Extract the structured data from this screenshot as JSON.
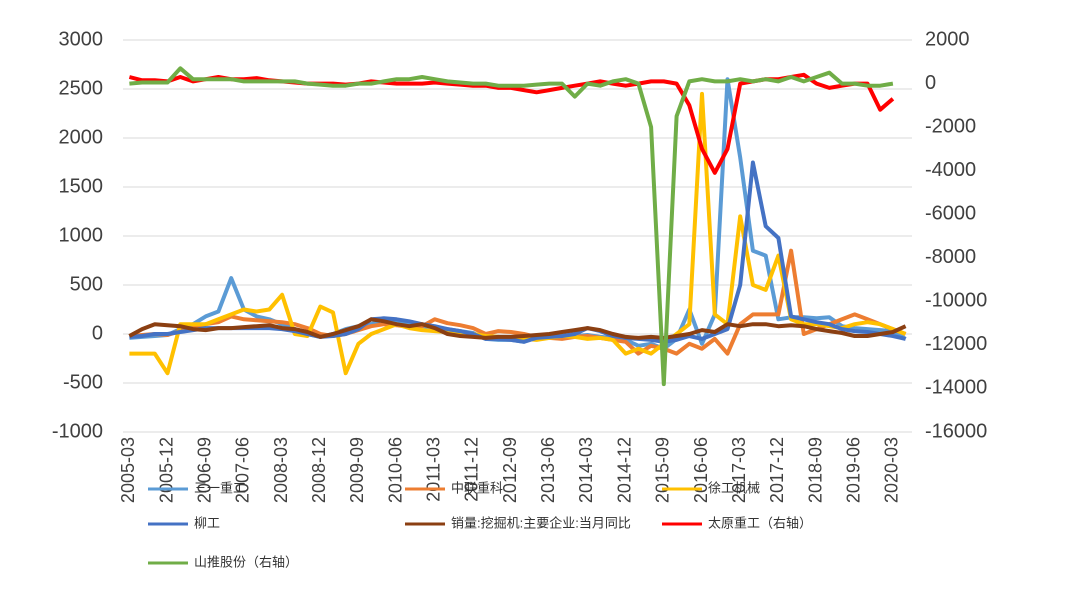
{
  "chart_data": {
    "type": "line",
    "categories": [
      "2005-03",
      null,
      null,
      "2005-12",
      null,
      null,
      "2006-09",
      null,
      null,
      "2007-06",
      null,
      null,
      "2008-03",
      null,
      null,
      "2008-12",
      null,
      null,
      "2009-09",
      null,
      null,
      "2010-06",
      null,
      null,
      "2011-03",
      null,
      null,
      "2011-12",
      null,
      null,
      "2012-09",
      null,
      null,
      "2013-06",
      null,
      null,
      "2014-03",
      null,
      null,
      "2014-12",
      null,
      null,
      "2015-09",
      null,
      null,
      "2016-06",
      null,
      null,
      "2017-03",
      null,
      null,
      "2017-12",
      null,
      null,
      "2018-09",
      null,
      null,
      "2019-06",
      null,
      null,
      "2020-03",
      null
    ],
    "ylim": [
      -1000,
      3000
    ],
    "yticks": [
      -1000,
      -500,
      0,
      500,
      1000,
      1500,
      2000,
      2500,
      3000
    ],
    "y2lim": [
      -16000,
      2000
    ],
    "y2ticks": [
      -16000,
      -14000,
      -12000,
      -10000,
      -8000,
      -6000,
      -4000,
      -2000,
      0,
      2000
    ],
    "grid": true,
    "series": [
      {
        "name": "三一重工",
        "color": "#5b9bd5",
        "values": [
          -40,
          -30,
          -20,
          -10,
          50,
          100,
          180,
          230,
          570,
          250,
          180,
          150,
          100,
          50,
          0,
          -30,
          0,
          50,
          80,
          100,
          150,
          130,
          100,
          80,
          70,
          50,
          30,
          10,
          -50,
          -60,
          -60,
          -80,
          -30,
          -40,
          -30,
          -20,
          -10,
          -30,
          -40,
          -60,
          -120,
          -100,
          -150,
          -50,
          250,
          -100,
          200,
          2600,
          1800,
          850,
          800,
          150,
          170,
          170,
          160,
          170,
          80,
          60,
          50,
          40,
          30,
          -50
        ]
      },
      {
        "name": "中联重科",
        "color": "#ed7d31",
        "values": [
          -20,
          -10,
          0,
          -10,
          30,
          60,
          100,
          120,
          180,
          150,
          140,
          130,
          120,
          100,
          60,
          0,
          -20,
          0,
          40,
          80,
          100,
          90,
          70,
          80,
          150,
          110,
          90,
          60,
          0,
          30,
          20,
          0,
          -30,
          -40,
          -50,
          -30,
          -20,
          -40,
          -60,
          -80,
          -200,
          -120,
          -150,
          -200,
          -100,
          -150,
          -50,
          -200,
          100,
          200,
          200,
          200,
          850,
          0,
          50,
          100,
          150,
          200,
          150,
          100,
          50,
          0
        ]
      },
      {
        "name": "徐工机械",
        "color": "#ffc000",
        "values": [
          -200,
          -200,
          -200,
          -400,
          100,
          100,
          100,
          150,
          200,
          250,
          230,
          250,
          400,
          0,
          -20,
          280,
          220,
          -400,
          -100,
          0,
          50,
          100,
          60,
          40,
          30,
          20,
          10,
          0,
          -20,
          -30,
          -40,
          -50,
          -60,
          -40,
          -20,
          -30,
          -50,
          -40,
          -60,
          -200,
          -150,
          -200,
          -100,
          0,
          100,
          2450,
          200,
          100,
          1200,
          500,
          450,
          800,
          150,
          100,
          100,
          80,
          60,
          100,
          120,
          100,
          50,
          0
        ]
      },
      {
        "name": "柳工",
        "color": "#4472c4",
        "values": [
          -30,
          -20,
          0,
          0,
          20,
          40,
          60,
          60,
          60,
          60,
          60,
          60,
          50,
          30,
          0,
          -30,
          -20,
          0,
          50,
          150,
          160,
          150,
          130,
          100,
          80,
          50,
          30,
          0,
          -50,
          -50,
          -60,
          -80,
          -40,
          -30,
          -20,
          0,
          60,
          30,
          -20,
          -40,
          -50,
          -60,
          -80,
          -60,
          -20,
          -50,
          0,
          50,
          500,
          1750,
          1100,
          980,
          180,
          150,
          120,
          100,
          50,
          30,
          20,
          0,
          -20,
          -50
        ]
      },
      {
        "name": "销量:挖掘机:主要企业:当月同比",
        "color": "#8b3f12",
        "values": [
          -20,
          50,
          100,
          90,
          80,
          50,
          40,
          60,
          60,
          70,
          80,
          90,
          60,
          50,
          20,
          -30,
          0,
          40,
          80,
          150,
          130,
          100,
          80,
          100,
          60,
          0,
          -20,
          -30,
          -40,
          -30,
          -30,
          -20,
          -10,
          0,
          20,
          40,
          60,
          40,
          0,
          -30,
          -40,
          -30,
          -40,
          -20,
          0,
          40,
          20,
          100,
          80,
          100,
          100,
          80,
          90,
          80,
          50,
          30,
          10,
          -20,
          -20,
          0,
          20,
          80
        ]
      },
      {
        "name": "太原重工（右轴）",
        "color": "#ff0000",
        "axis": "y2",
        "values": [
          300,
          150,
          150,
          100,
          300,
          100,
          200,
          300,
          200,
          200,
          250,
          150,
          100,
          50,
          0,
          0,
          0,
          -50,
          0,
          100,
          50,
          0,
          0,
          0,
          50,
          0,
          -50,
          -100,
          -100,
          -200,
          -200,
          -300,
          -400,
          -300,
          -200,
          -100,
          0,
          100,
          0,
          -100,
          0,
          100,
          100,
          0,
          -1000,
          -3000,
          -4100,
          -3000,
          0,
          100,
          200,
          200,
          300,
          400,
          0,
          -200,
          -100,
          0,
          0,
          -1200,
          -700,
          null
        ]
      },
      {
        "name": "山推股份（右轴）",
        "color": "#70ad47",
        "axis": "y2",
        "values": [
          0,
          50,
          50,
          50,
          700,
          200,
          200,
          200,
          200,
          100,
          100,
          100,
          100,
          100,
          0,
          -50,
          -100,
          -100,
          0,
          0,
          100,
          200,
          200,
          300,
          200,
          100,
          50,
          0,
          0,
          -100,
          -100,
          -100,
          -50,
          0,
          0,
          -600,
          0,
          -100,
          100,
          200,
          0,
          -2000,
          -13800,
          -1500,
          100,
          200,
          100,
          100,
          200,
          100,
          200,
          100,
          300,
          100,
          300,
          500,
          0,
          0,
          -100,
          -100,
          0,
          null
        ]
      }
    ]
  }
}
